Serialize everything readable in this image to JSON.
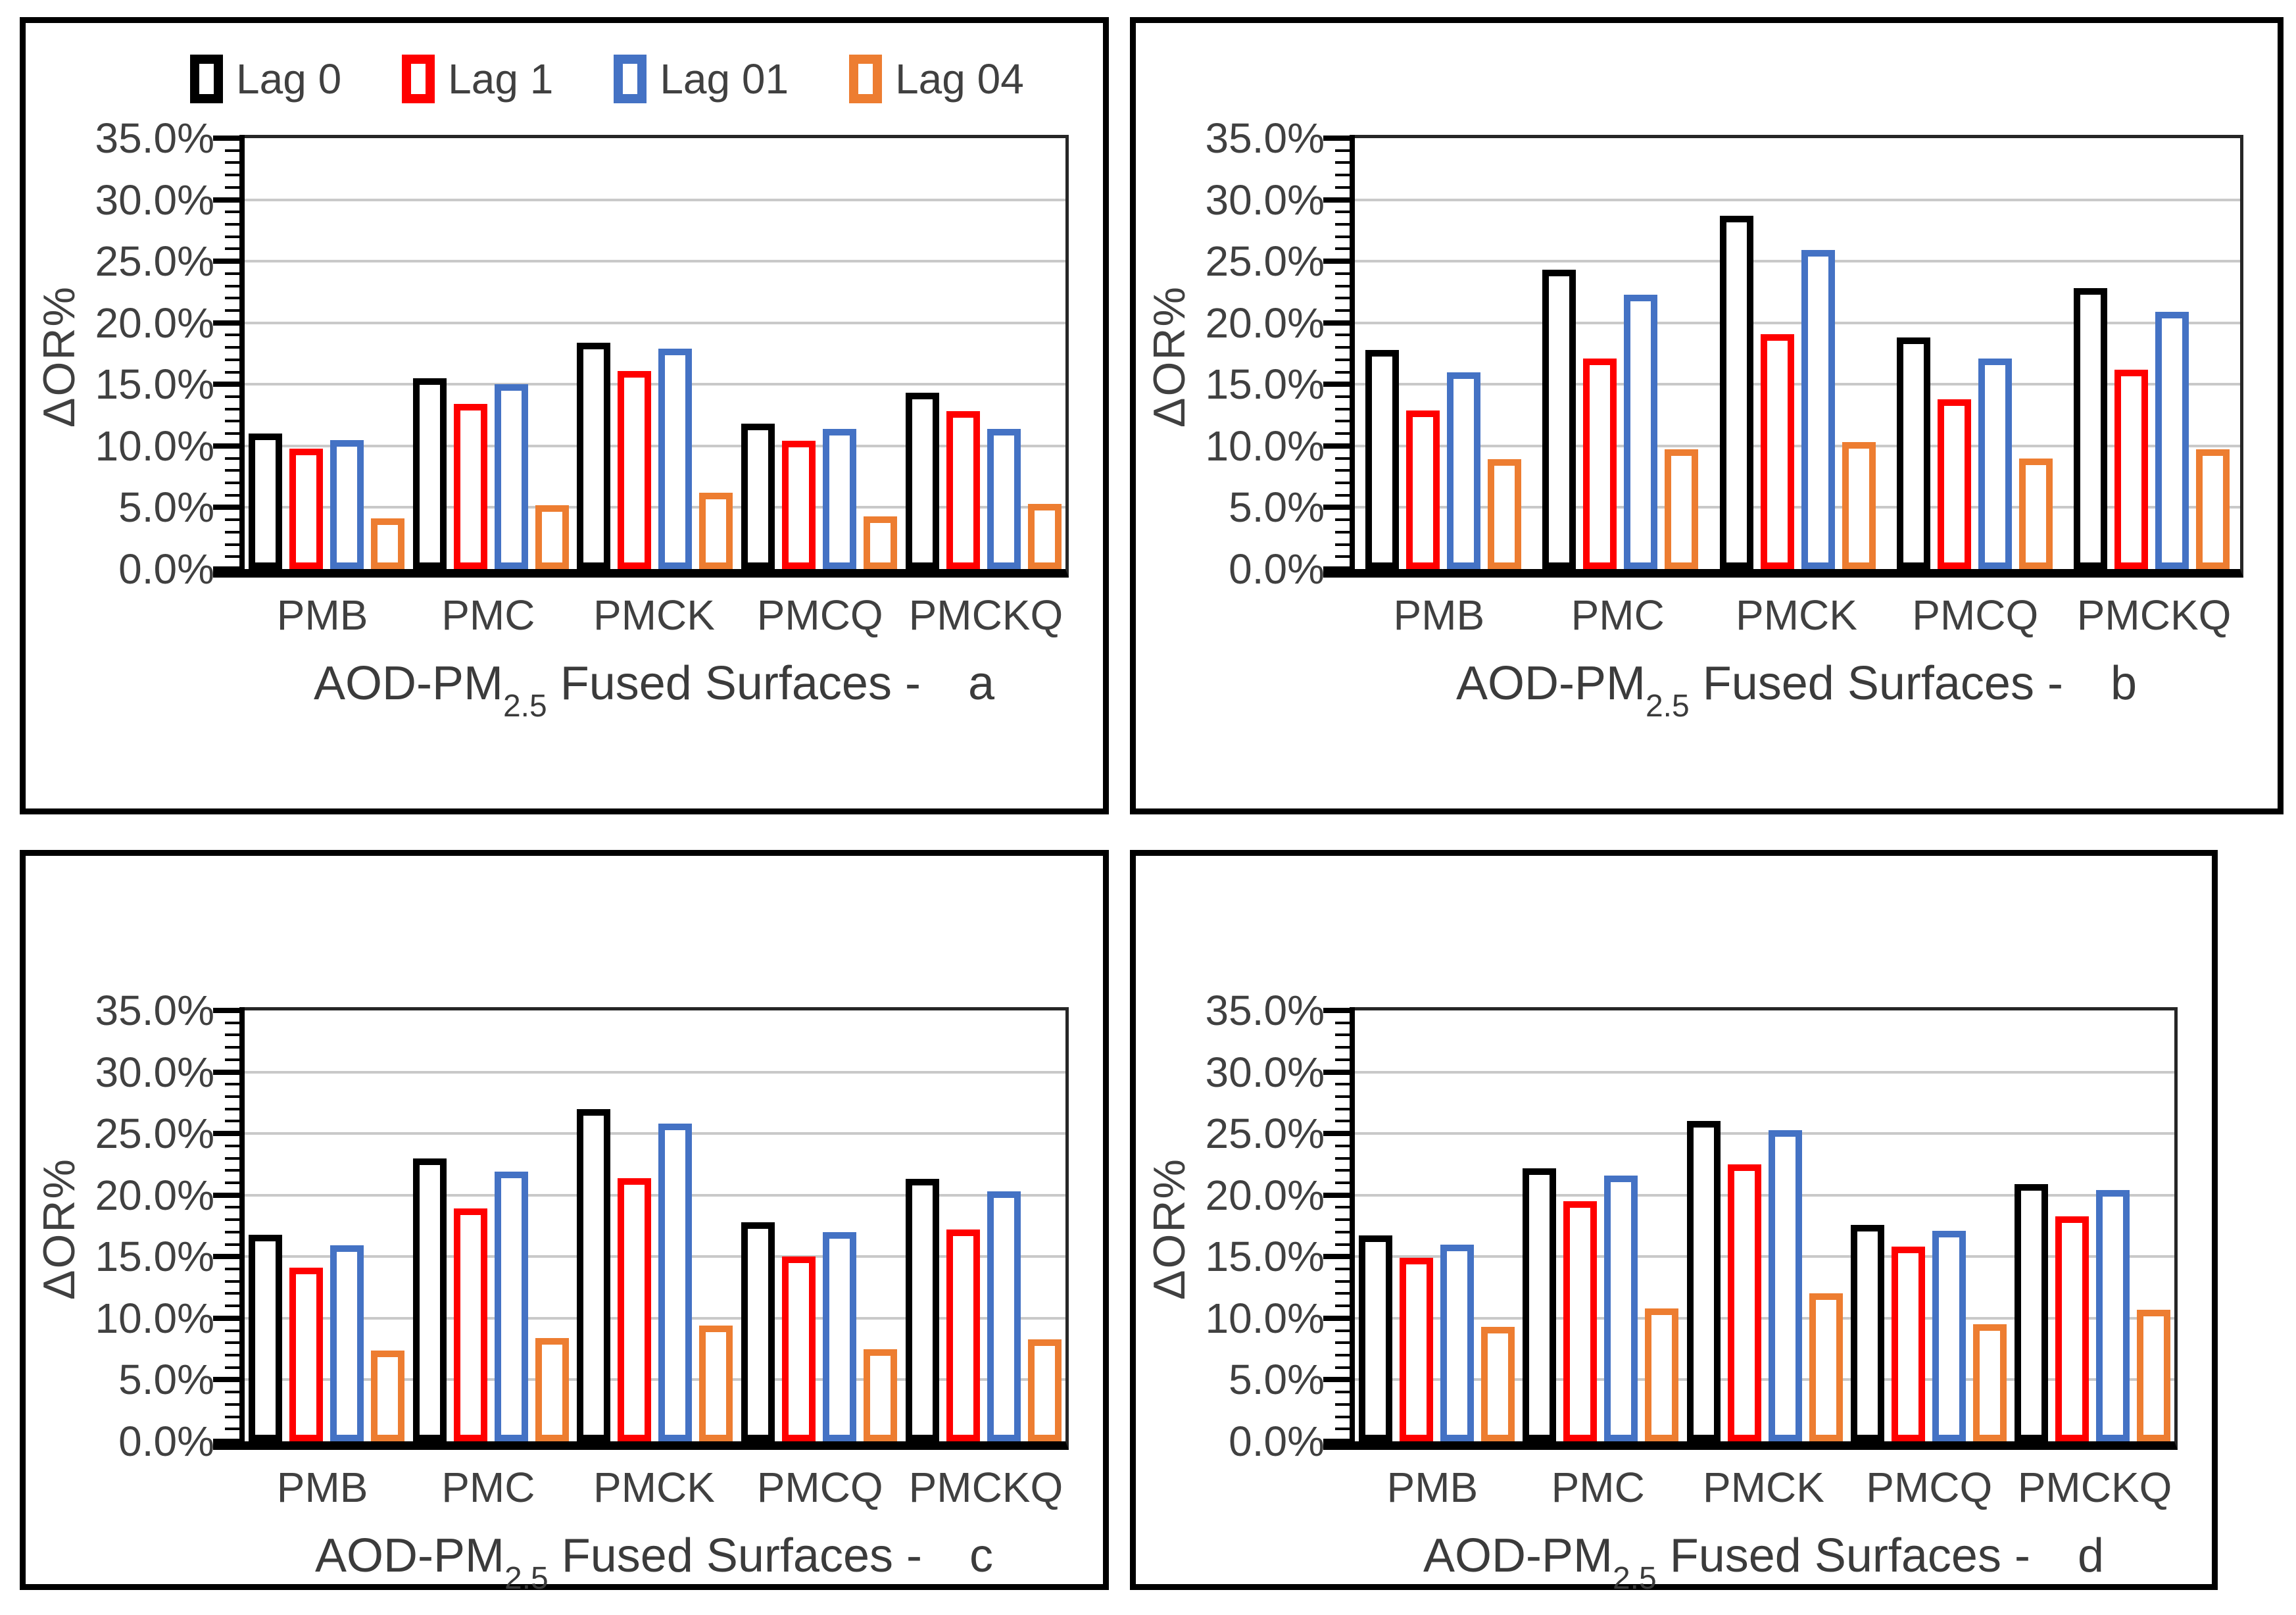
{
  "figure": {
    "background": "#ffffff",
    "panel_border_color": "#000000",
    "gridline_color": "#C9C9C9",
    "text_color": "#404040"
  },
  "legend": {
    "items": [
      {
        "label": "Lag 0",
        "color": "#000000"
      },
      {
        "label": "Lag 1",
        "color": "#FF0000"
      },
      {
        "label": "Lag 01",
        "color": "#4472C4"
      },
      {
        "label": "Lag 04",
        "color": "#ED7D31"
      }
    ]
  },
  "y_axis": {
    "label": "ΔOR%",
    "max": 35,
    "major_step": 5,
    "minor_step": 1,
    "tick_labels": [
      "0.0%",
      "5.0%",
      "10.0%",
      "15.0%",
      "20.0%",
      "25.0%",
      "30.0%",
      "35.0%"
    ]
  },
  "x_axis": {
    "title_prefix": "AOD-PM",
    "title_sub": "2.5",
    "title_rest": " Fused Surfaces - "
  },
  "chart_data": [
    {
      "type": "bar",
      "panel_letter": "a",
      "show_legend": true,
      "title": "AOD-PM2.5 Fused Surfaces - a",
      "xlabel": "AOD-PM2.5 Fused Surfaces - a",
      "ylabel": "ΔOR%",
      "ylim": [
        0,
        35
      ],
      "grid": true,
      "categories": [
        "PMB",
        "PMC",
        "PMCK",
        "PMCQ",
        "PMCKQ"
      ],
      "series": [
        {
          "name": "Lag 0",
          "values": [
            11.0,
            15.5,
            18.4,
            11.8,
            14.3
          ]
        },
        {
          "name": "Lag 1",
          "values": [
            9.8,
            13.4,
            16.1,
            10.4,
            12.8
          ]
        },
        {
          "name": "Lag 01",
          "values": [
            10.5,
            15.0,
            17.9,
            11.4,
            11.4
          ]
        },
        {
          "name": "Lag 04",
          "values": [
            4.1,
            5.2,
            6.2,
            4.3,
            5.3
          ]
        }
      ]
    },
    {
      "type": "bar",
      "panel_letter": "b",
      "show_legend": false,
      "title": "AOD-PM2.5 Fused Surfaces - b",
      "xlabel": "AOD-PM2.5 Fused Surfaces - b",
      "ylabel": "ΔOR%",
      "ylim": [
        0,
        35
      ],
      "grid": true,
      "categories": [
        "PMB",
        "PMC",
        "PMCK",
        "PMCQ",
        "PMCKQ"
      ],
      "series": [
        {
          "name": "Lag 0",
          "values": [
            17.8,
            24.3,
            28.7,
            18.8,
            22.8
          ]
        },
        {
          "name": "Lag 1",
          "values": [
            12.9,
            17.1,
            19.1,
            13.8,
            16.2
          ]
        },
        {
          "name": "Lag 01",
          "values": [
            16.0,
            22.3,
            25.9,
            17.1,
            20.9
          ]
        },
        {
          "name": "Lag 04",
          "values": [
            8.9,
            9.7,
            10.3,
            9.0,
            9.7
          ]
        }
      ]
    },
    {
      "type": "bar",
      "panel_letter": "c",
      "show_legend": false,
      "title": "AOD-PM2.5 Fused Surfaces - c",
      "xlabel": "AOD-PM2.5 Fused Surfaces - c",
      "ylabel": "ΔOR%",
      "ylim": [
        0,
        35
      ],
      "grid": true,
      "categories": [
        "PMB",
        "PMC",
        "PMCK",
        "PMCQ",
        "PMCKQ"
      ],
      "series": [
        {
          "name": "Lag 0",
          "values": [
            16.8,
            23.0,
            27.0,
            17.8,
            21.3
          ]
        },
        {
          "name": "Lag 1",
          "values": [
            14.1,
            18.9,
            21.4,
            15.0,
            17.2
          ]
        },
        {
          "name": "Lag 01",
          "values": [
            15.9,
            21.9,
            25.8,
            17.0,
            20.3
          ]
        },
        {
          "name": "Lag 04",
          "values": [
            7.4,
            8.4,
            9.4,
            7.5,
            8.3
          ]
        }
      ]
    },
    {
      "type": "bar",
      "panel_letter": "d",
      "show_legend": false,
      "title": "AOD-PM2.5 Fused Surfaces - d",
      "xlabel": "AOD-PM2.5 Fused Surfaces - d",
      "ylabel": "ΔOR%",
      "ylim": [
        0,
        35
      ],
      "grid": true,
      "categories": [
        "PMB",
        "PMC",
        "PMCK",
        "PMCQ",
        "PMCKQ"
      ],
      "series": [
        {
          "name": "Lag 0",
          "values": [
            16.7,
            22.2,
            26.0,
            17.6,
            20.9
          ]
        },
        {
          "name": "Lag 1",
          "values": [
            14.9,
            19.5,
            22.5,
            15.8,
            18.3
          ]
        },
        {
          "name": "Lag 01",
          "values": [
            16.0,
            21.6,
            25.3,
            17.1,
            20.4
          ]
        },
        {
          "name": "Lag 04",
          "values": [
            9.3,
            10.8,
            12.0,
            9.5,
            10.7
          ]
        }
      ]
    }
  ]
}
